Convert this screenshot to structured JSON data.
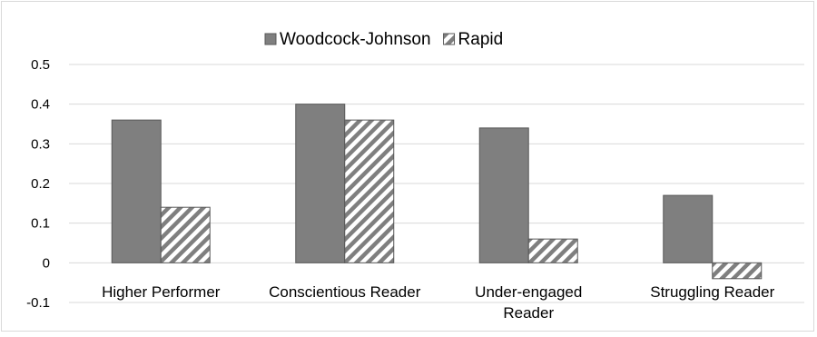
{
  "chart_data": {
    "type": "bar",
    "categories": [
      [
        "Higher Performer"
      ],
      [
        "Conscientious Reader"
      ],
      [
        "Under-engaged",
        "Reader"
      ],
      [
        "Struggling Reader"
      ]
    ],
    "series": [
      {
        "name": "Woodcock-Johnson",
        "values": [
          0.36,
          0.4,
          0.34,
          0.17
        ],
        "color": "#7f7f7f",
        "pattern": "solid"
      },
      {
        "name": "Rapid",
        "values": [
          0.14,
          0.36,
          0.06,
          -0.04
        ],
        "color": "#7f7f7f",
        "pattern": "diagonal-hatch"
      }
    ],
    "ylim": [
      -0.1,
      0.5
    ],
    "yticks": [
      -0.1,
      0,
      0.1,
      0.2,
      0.3,
      0.4,
      0.5
    ],
    "ytick_labels": [
      "-0.1",
      "0",
      "0.1",
      "0.2",
      "0.3",
      "0.4",
      "0.5"
    ],
    "grid": true,
    "legend_position": "top-center"
  }
}
